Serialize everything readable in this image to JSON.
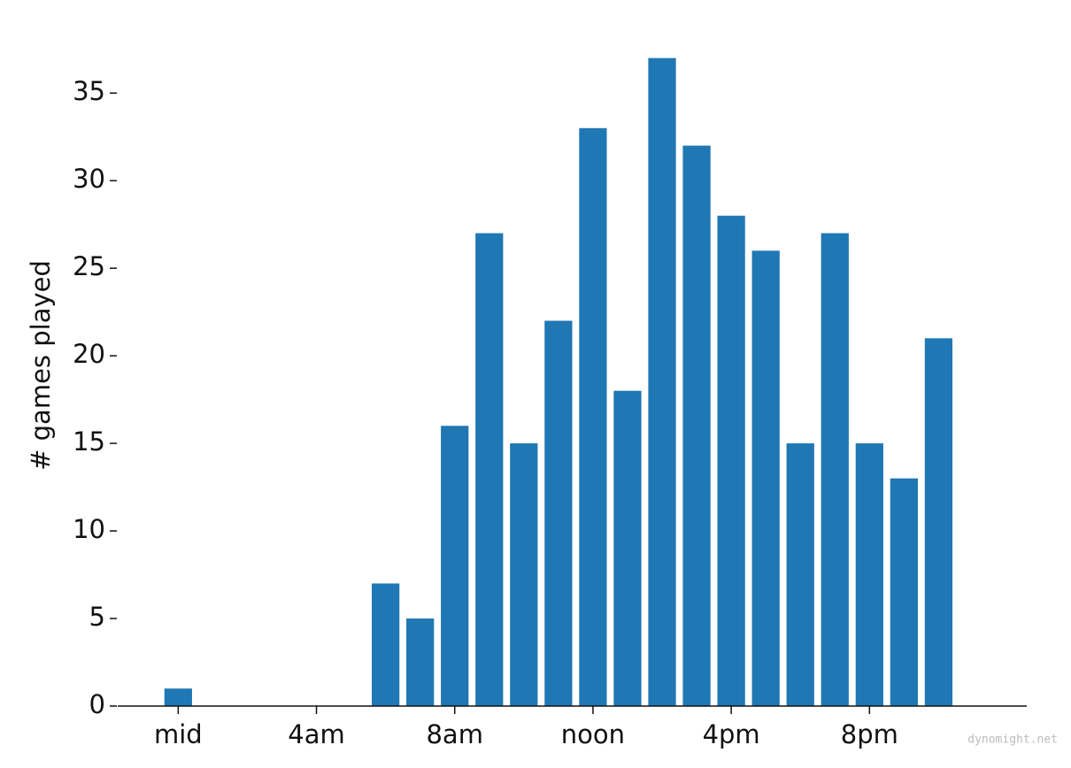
{
  "chart_data": {
    "type": "bar",
    "y_label": "# games played",
    "watermark": "dynomight.net",
    "x": [
      0,
      1,
      2,
      3,
      4,
      5,
      6,
      7,
      8,
      9,
      10,
      11,
      12,
      13,
      14,
      15,
      16,
      17,
      18,
      19,
      20,
      21,
      22,
      23
    ],
    "values": [
      1,
      0,
      0,
      0,
      0,
      0,
      7,
      5,
      16,
      27,
      15,
      22,
      33,
      18,
      37,
      32,
      28,
      26,
      15,
      27,
      15,
      13,
      21,
      0
    ],
    "color": "#1f77b4",
    "xlim": [
      -1.75,
      24.55
    ],
    "xticks": [
      {
        "value": 0,
        "label": "mid"
      },
      {
        "value": 4,
        "label": "4am"
      },
      {
        "value": 8,
        "label": "8am"
      },
      {
        "value": 12,
        "label": "noon"
      },
      {
        "value": 16,
        "label": "4pm"
      },
      {
        "value": 20,
        "label": "8pm"
      }
    ],
    "ylim": [
      0,
      38.85
    ],
    "yticks": [
      0,
      5,
      10,
      15,
      20,
      25,
      30,
      35
    ],
    "grid": false
  }
}
